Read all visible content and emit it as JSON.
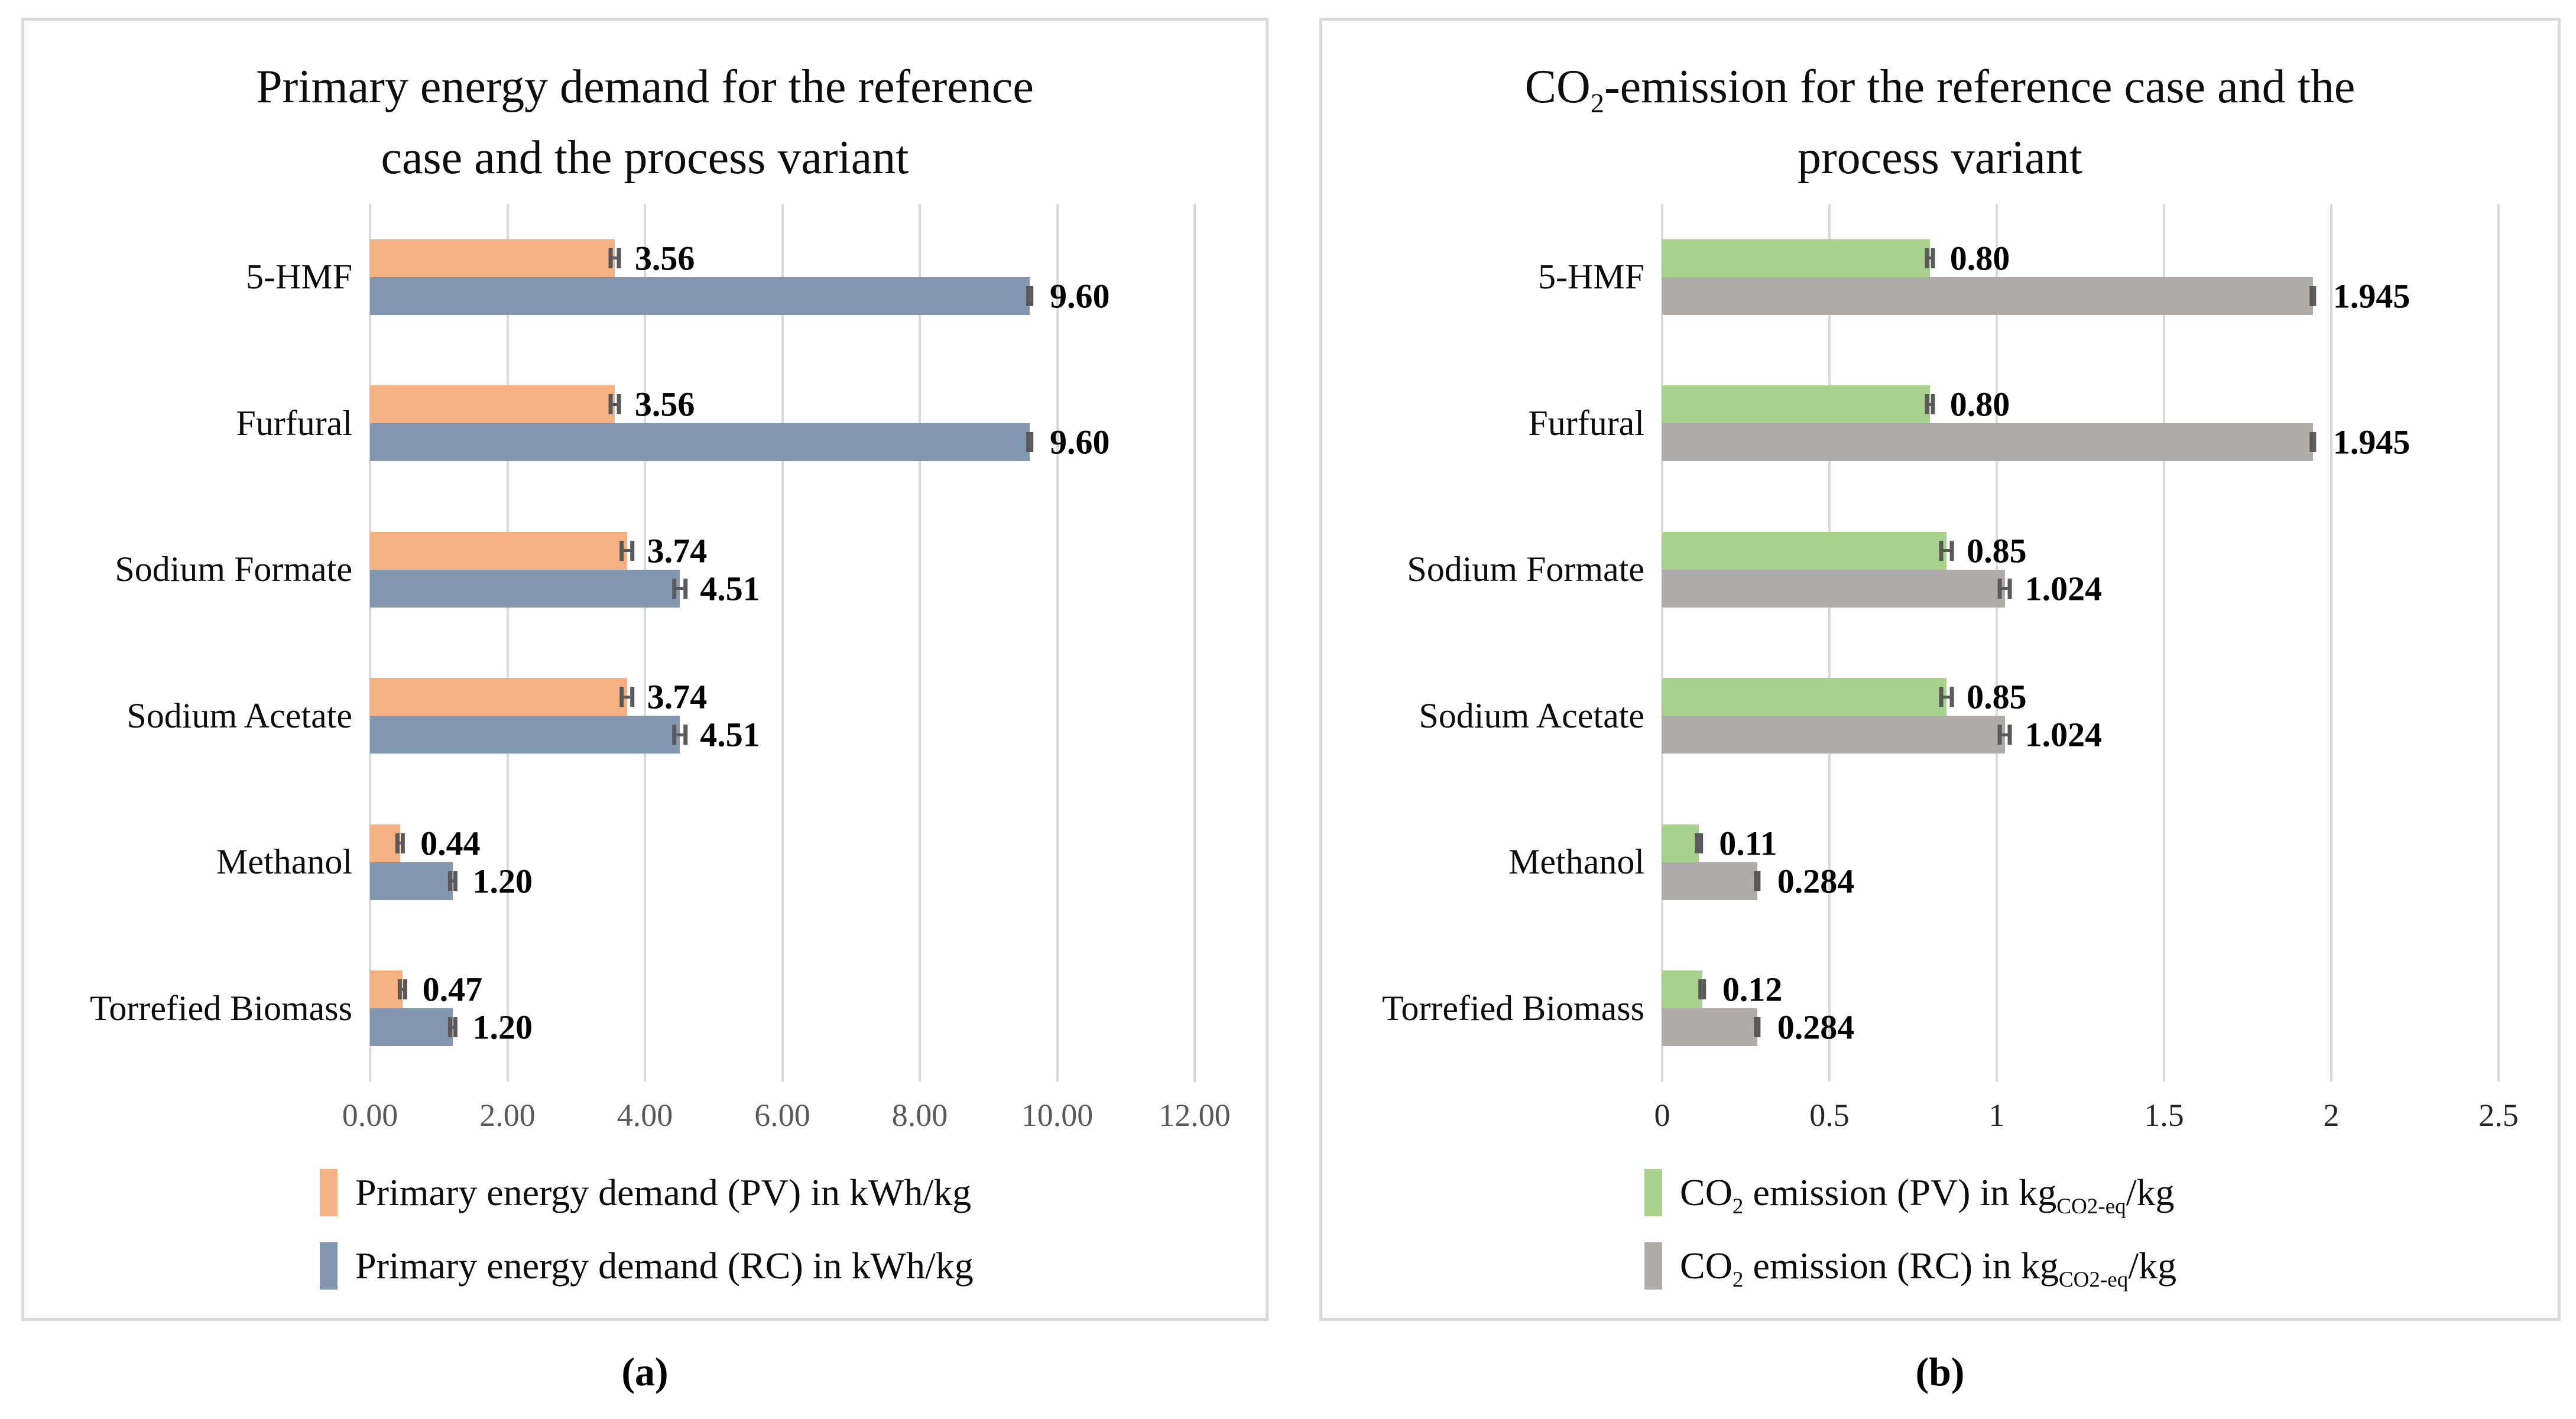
{
  "figure": {
    "captions": [
      "(a)",
      "(b)"
    ]
  },
  "style": {
    "grid_color": "#D9D9D9",
    "panel_border_color": "#D9D9D9",
    "error_bar_color": "#595959",
    "pv_energy_color": "#F4B183",
    "rc_energy_color": "#8497B0",
    "pv_co2_color": "#A9D18E",
    "rc_co2_color": "#AFABAB"
  },
  "chart_data": [
    {
      "type": "bar",
      "orientation": "horizontal",
      "title": "Primary energy demand for the reference case and the process variant",
      "title_lines": [
        [
          {
            "t": "Primary energy demand for the reference"
          }
        ],
        [
          {
            "t": "case and the process variant"
          }
        ]
      ],
      "categories": [
        "5-HMF",
        "Furfural",
        "Sodium Formate",
        "Sodium Acetate",
        "Methanol",
        "Torrefied Biomass"
      ],
      "xlim": [
        0,
        12
      ],
      "xticks": [
        "0.00",
        "2.00",
        "4.00",
        "6.00",
        "8.00",
        "10.00",
        "12.00"
      ],
      "grid": true,
      "legend_position": "bottom",
      "series": [
        {
          "name": "Primary energy demand (PV) in kWh/kg",
          "name_parts": [
            {
              "t": "Primary energy demand (PV) in kWh/kg"
            }
          ],
          "color": "#F4B183",
          "values": [
            3.56,
            3.56,
            3.74,
            3.74,
            0.44,
            0.47
          ],
          "labels": [
            "3.56",
            "3.56",
            "3.74",
            "3.74",
            "0.44",
            "0.47"
          ],
          "errors": [
            0.09,
            0.09,
            0.11,
            0.11,
            0.07,
            0.07
          ]
        },
        {
          "name": "Primary energy demand (RC)  in kWh/kg",
          "name_parts": [
            {
              "t": "Primary energy demand (RC)  in kWh/kg"
            }
          ],
          "color": "#8497B0",
          "values": [
            9.6,
            9.6,
            4.51,
            4.51,
            1.2,
            1.2
          ],
          "labels": [
            "9.60",
            "9.60",
            "4.51",
            "4.51",
            "1.20",
            "1.20"
          ],
          "errors": [
            0.05,
            0.05,
            0.11,
            0.11,
            0.07,
            0.07
          ]
        }
      ]
    },
    {
      "type": "bar",
      "orientation": "horizontal",
      "title": "CO2-emission for the reference case and the process variant",
      "title_lines": [
        [
          {
            "t": "CO"
          },
          {
            "t": "2",
            "sub": true
          },
          {
            "t": "-emission for the reference case and the"
          }
        ],
        [
          {
            "t": "process variant"
          }
        ]
      ],
      "categories": [
        "5-HMF",
        "Furfural",
        "Sodium Formate",
        "Sodium Acetate",
        "Methanol",
        "Torrefied Biomass"
      ],
      "xlim": [
        0,
        2.5
      ],
      "xticks": [
        "0",
        "0.5",
        "1",
        "1.5",
        "2",
        "2.5"
      ],
      "grid": true,
      "legend_position": "bottom",
      "series": [
        {
          "name": "CO2 emission (PV) in kgCO2-eq/kg",
          "name_parts": [
            {
              "t": "CO"
            },
            {
              "t": "2",
              "sub": true
            },
            {
              "t": " emission (PV) in kg"
            },
            {
              "t": "CO2-eq",
              "sub": true
            },
            {
              "t": "/kg"
            }
          ],
          "color": "#A9D18E",
          "values": [
            0.8,
            0.8,
            0.85,
            0.85,
            0.11,
            0.12
          ],
          "labels": [
            "0.80",
            "0.80",
            "0.85",
            "0.85",
            "0.11",
            "0.12"
          ],
          "errors": [
            0.015,
            0.015,
            0.022,
            0.022,
            0.012,
            0.012
          ]
        },
        {
          "name": "CO2 emission (RC) in kgCO2-eq/kg",
          "name_parts": [
            {
              "t": "CO"
            },
            {
              "t": "2",
              "sub": true
            },
            {
              "t": " emission (RC) in kg"
            },
            {
              "t": "CO2-eq",
              "sub": true
            },
            {
              "t": "/kg"
            }
          ],
          "color": "#AFABAB",
          "values": [
            1.945,
            1.945,
            1.024,
            1.024,
            0.284,
            0.284
          ],
          "labels": [
            "1.945",
            "1.945",
            "1.024",
            "1.024",
            "0.284",
            "0.284"
          ],
          "errors": [
            0.01,
            0.01,
            0.022,
            0.022,
            0.01,
            0.01
          ]
        }
      ]
    }
  ]
}
